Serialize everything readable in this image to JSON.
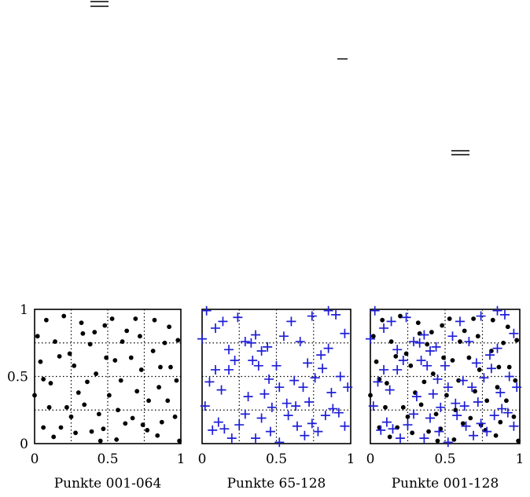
{
  "colors": {
    "dot": "#000000",
    "plus": "#1f1fd6"
  },
  "chart_data": [
    {
      "type": "scatter",
      "title": "Punkte 001-064",
      "xlim": [
        0,
        1
      ],
      "ylim": [
        0,
        1
      ],
      "xticks": [
        "0",
        "0.5",
        "1"
      ],
      "yticks": [
        "0",
        "0.5",
        "1"
      ],
      "grid_lines": [
        0.25,
        0.5,
        0.75
      ],
      "series": [
        {
          "marker": "dot",
          "points": [
            [
              0.06,
              0.12
            ],
            [
              0.06,
              0.48
            ],
            [
              0.13,
              0.05
            ],
            [
              0.02,
              0.8
            ],
            [
              0.08,
              0.92
            ],
            [
              0.17,
              0.65
            ],
            [
              0.22,
              0.27
            ],
            [
              0.27,
              0.58
            ],
            [
              0.32,
              0.9
            ],
            [
              0.3,
              0.38
            ],
            [
              0.38,
              0.74
            ],
            [
              0.42,
              0.52
            ],
            [
              0.45,
              0.02
            ],
            [
              0.48,
              0.88
            ],
            [
              0.53,
              0.93
            ],
            [
              0.57,
              0.25
            ],
            [
              0.62,
              0.15
            ],
            [
              0.66,
              0.64
            ],
            [
              0.7,
              0.39
            ],
            [
              0.72,
              0.8
            ],
            [
              0.77,
              0.1
            ],
            [
              0.82,
              0.92
            ],
            [
              0.85,
              0.42
            ],
            [
              0.87,
              0.16
            ],
            [
              0.93,
              0.57
            ],
            [
              0.96,
              0.2
            ],
            [
              0.98,
              0.77
            ],
            [
              0.04,
              0.61
            ],
            [
              0.1,
              0.27
            ],
            [
              0.14,
              0.76
            ],
            [
              0.18,
              0.12
            ],
            [
              0.24,
              0.67
            ],
            [
              0.28,
              0.08
            ],
            [
              0.34,
              0.29
            ],
            [
              0.36,
              0.46
            ],
            [
              0.41,
              0.83
            ],
            [
              0.47,
              0.11
            ],
            [
              0.51,
              0.36
            ],
            [
              0.55,
              0.62
            ],
            [
              0.59,
              0.47
            ],
            [
              0.63,
              0.84
            ],
            [
              0.67,
              0.19
            ],
            [
              0.69,
              0.93
            ],
            [
              0.73,
              0.55
            ],
            [
              0.78,
              0.32
            ],
            [
              0.81,
              0.69
            ],
            [
              0.86,
              0.57
            ],
            [
              0.89,
              0.75
            ],
            [
              0.91,
              0.32
            ],
            [
              0.97,
              0.47
            ],
            [
              0.0,
              0.36
            ],
            [
              0.11,
              0.45
            ],
            [
              0.2,
              0.95
            ],
            [
              0.25,
              0.2
            ],
            [
              0.33,
              0.82
            ],
            [
              0.39,
              0.09
            ],
            [
              0.44,
              0.22
            ],
            [
              0.49,
              0.64
            ],
            [
              0.56,
              0.03
            ],
            [
              0.6,
              0.76
            ],
            [
              0.74,
              0.14
            ],
            [
              0.84,
              0.06
            ],
            [
              0.92,
              0.87
            ],
            [
              0.99,
              0.02
            ]
          ]
        }
      ]
    },
    {
      "type": "scatter",
      "title": "Punkte 65-128",
      "xlim": [
        0,
        1
      ],
      "ylim": [
        0,
        1
      ],
      "xticks": [
        "0",
        "0.5",
        "1"
      ],
      "yticks": [],
      "grid_lines": [
        0.25,
        0.5,
        0.75
      ],
      "series": [
        {
          "marker": "plus",
          "points": [
            [
              0.03,
              0.99
            ],
            [
              0.09,
              0.86
            ],
            [
              0.14,
              0.91
            ],
            [
              0.18,
              0.7
            ],
            [
              0.24,
              0.94
            ],
            [
              0.29,
              0.76
            ],
            [
              0.36,
              0.81
            ],
            [
              0.4,
              0.69
            ],
            [
              0.44,
              0.72
            ],
            [
              0.5,
              0.58
            ],
            [
              0.55,
              0.8
            ],
            [
              0.6,
              0.91
            ],
            [
              0.66,
              0.76
            ],
            [
              0.74,
              0.95
            ],
            [
              0.8,
              0.66
            ],
            [
              0.85,
              0.99
            ],
            [
              0.9,
              0.96
            ],
            [
              0.96,
              0.82
            ],
            [
              0.0,
              0.78
            ],
            [
              0.05,
              0.46
            ],
            [
              0.09,
              0.55
            ],
            [
              0.13,
              0.4
            ],
            [
              0.18,
              0.55
            ],
            [
              0.22,
              0.62
            ],
            [
              0.29,
              0.22
            ],
            [
              0.34,
              0.62
            ],
            [
              0.38,
              0.58
            ],
            [
              0.42,
              0.37
            ],
            [
              0.45,
              0.48
            ],
            [
              0.52,
              0.42
            ],
            [
              0.57,
              0.3
            ],
            [
              0.62,
              0.47
            ],
            [
              0.68,
              0.42
            ],
            [
              0.72,
              0.31
            ],
            [
              0.76,
              0.49
            ],
            [
              0.81,
              0.56
            ],
            [
              0.87,
              0.38
            ],
            [
              0.93,
              0.5
            ],
            [
              0.98,
              0.42
            ],
            [
              0.02,
              0.28
            ],
            [
              0.07,
              0.1
            ],
            [
              0.11,
              0.16
            ],
            [
              0.15,
              0.11
            ],
            [
              0.2,
              0.04
            ],
            [
              0.25,
              0.14
            ],
            [
              0.31,
              0.35
            ],
            [
              0.36,
              0.04
            ],
            [
              0.4,
              0.19
            ],
            [
              0.46,
              0.09
            ],
            [
              0.52,
              0.01
            ],
            [
              0.58,
              0.21
            ],
            [
              0.63,
              0.28
            ],
            [
              0.69,
              0.06
            ],
            [
              0.74,
              0.15
            ],
            [
              0.78,
              0.09
            ],
            [
              0.83,
              0.21
            ],
            [
              0.88,
              0.26
            ],
            [
              0.92,
              0.23
            ],
            [
              0.96,
              0.13
            ],
            [
              0.33,
              0.75
            ],
            [
              0.47,
              0.27
            ],
            [
              0.64,
              0.13
            ],
            [
              0.71,
              0.6
            ],
            [
              0.85,
              0.71
            ]
          ]
        }
      ]
    },
    {
      "type": "scatter",
      "title": "Punkte 001-128",
      "xlim": [
        0,
        1
      ],
      "ylim": [
        0,
        1
      ],
      "xticks": [
        "0",
        "0.5",
        "1"
      ],
      "yticks": [],
      "grid_lines": [
        0.25,
        0.5,
        0.75
      ],
      "series": [
        {
          "marker": "dot",
          "ref": 0
        },
        {
          "marker": "plus",
          "ref": 1
        }
      ]
    }
  ]
}
